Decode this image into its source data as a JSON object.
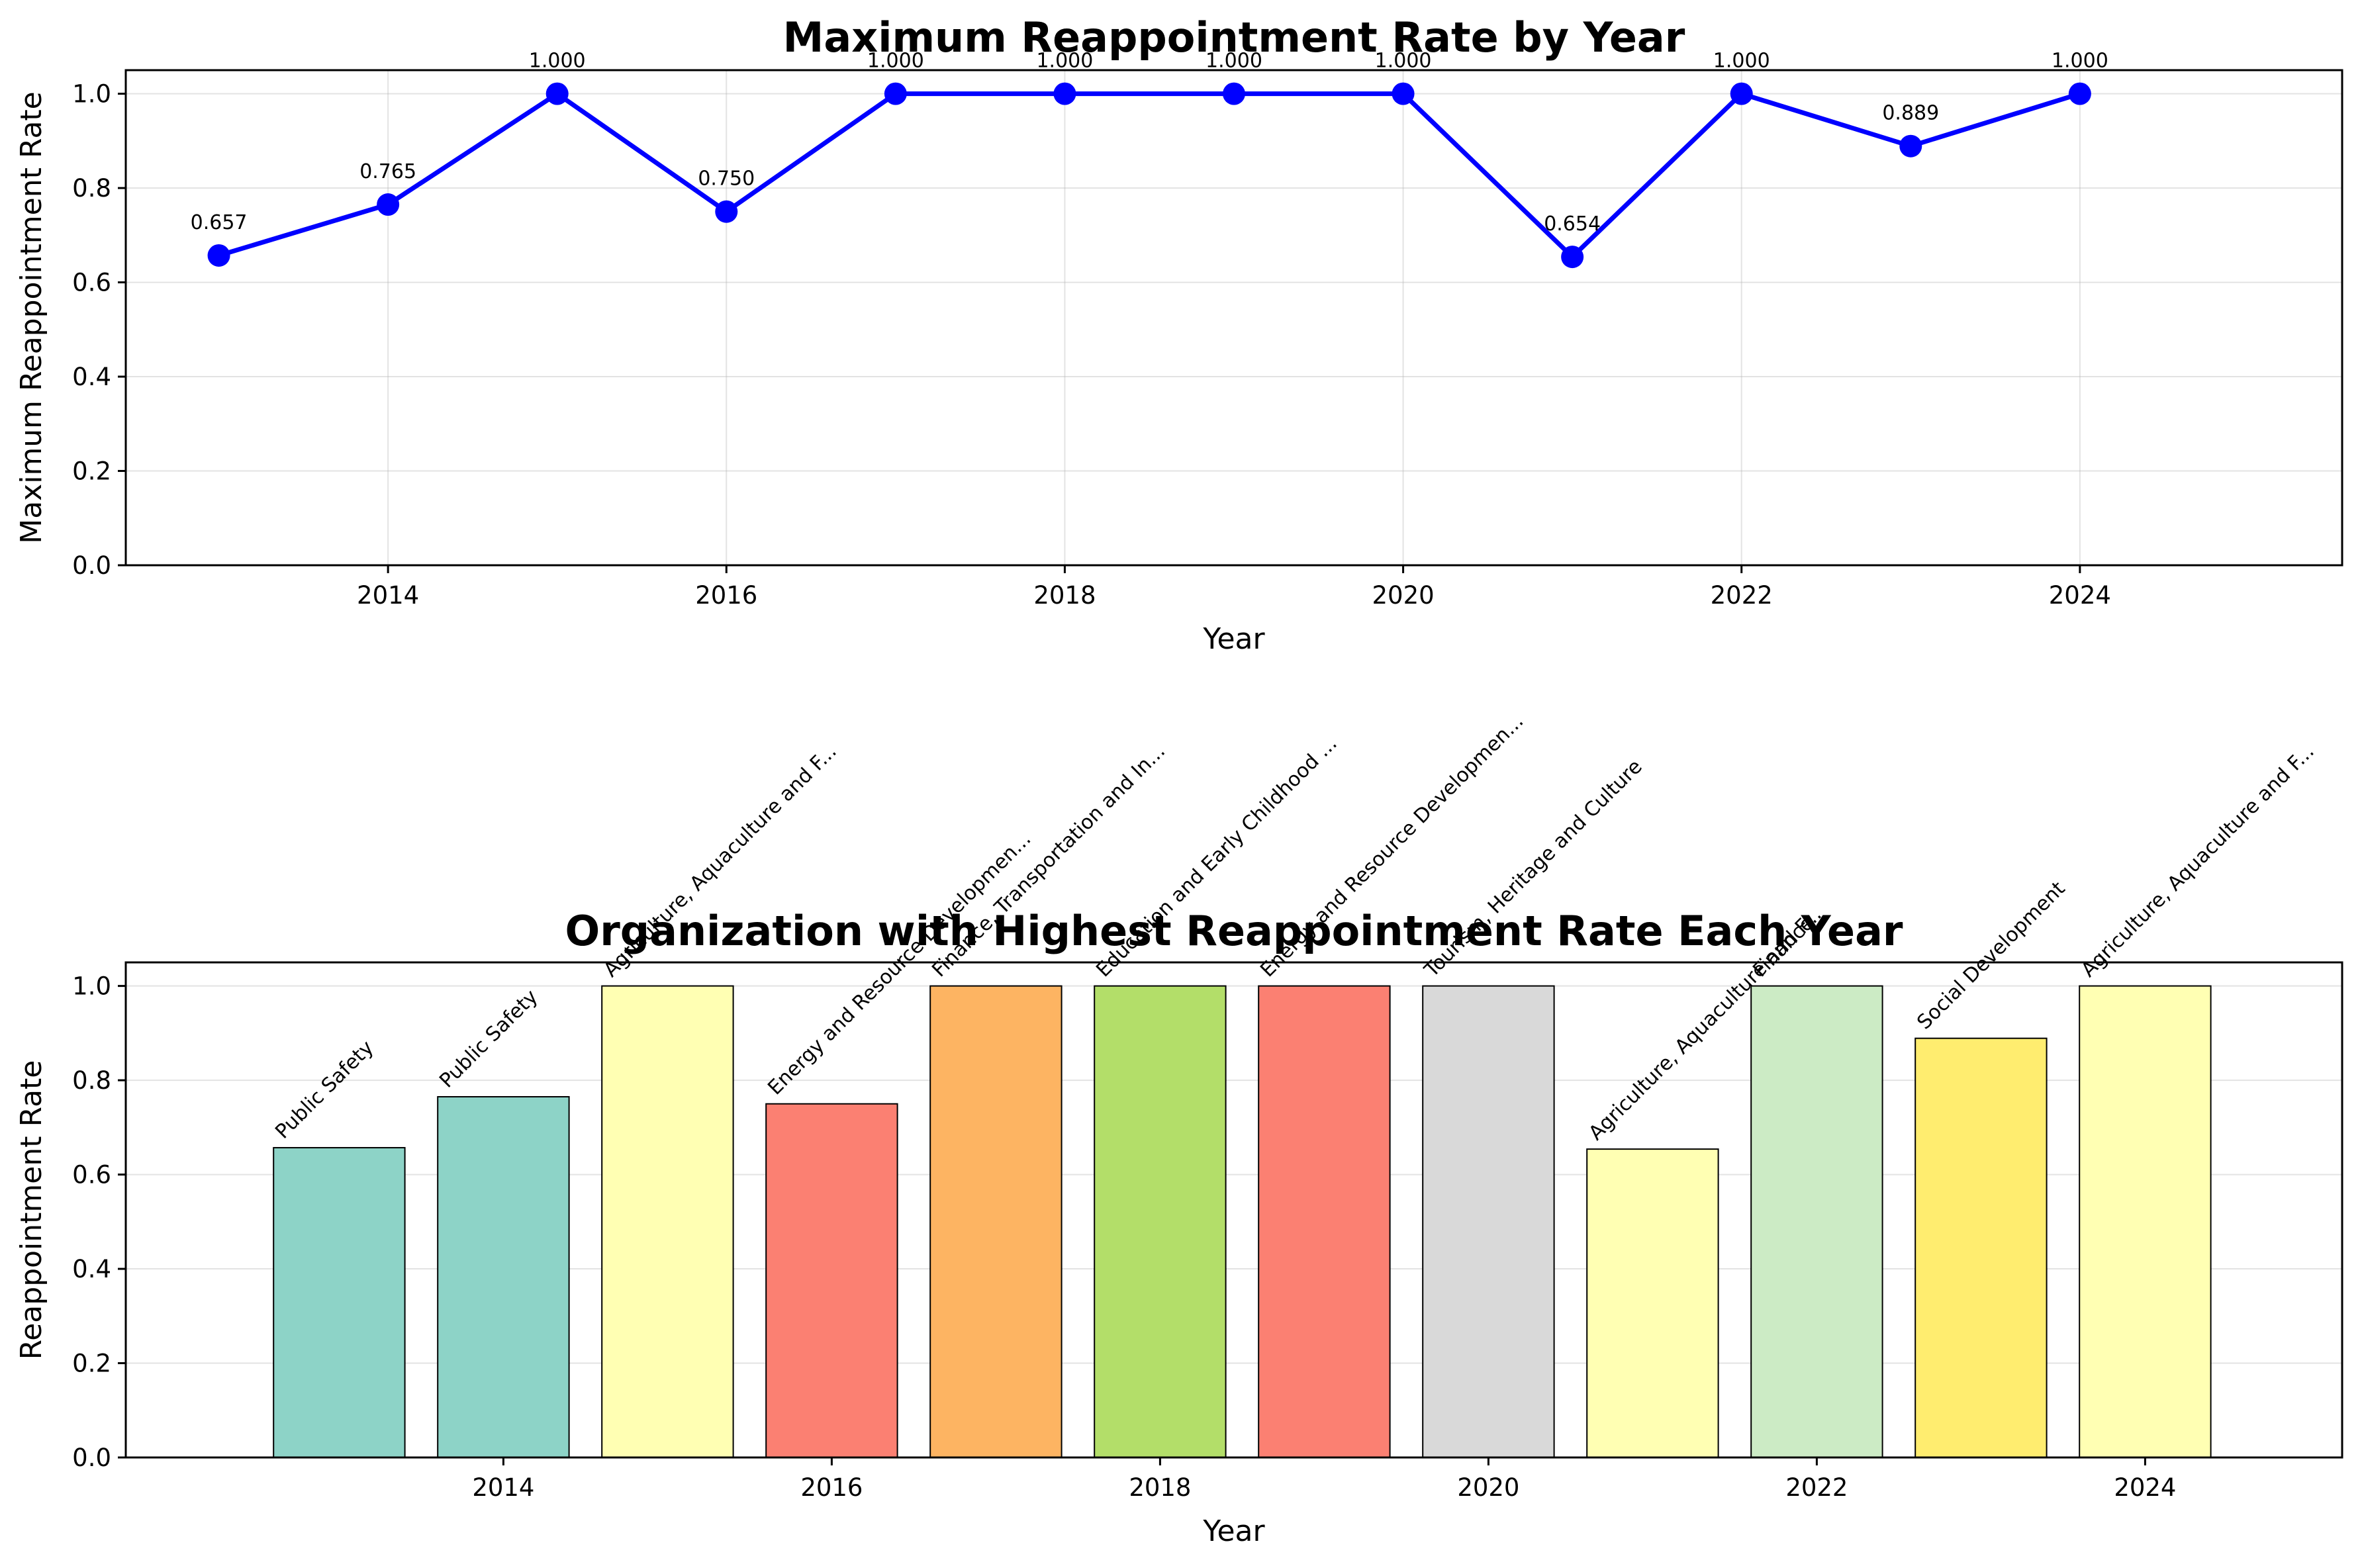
{
  "chart_data": [
    {
      "type": "line",
      "title": "Maximum Reappointment Rate by Year",
      "xlabel": "Year",
      "ylabel": "Maximum Reappointment Rate",
      "x": [
        2013,
        2014,
        2015,
        2016,
        2017,
        2018,
        2019,
        2020,
        2021,
        2022,
        2023,
        2024
      ],
      "values": [
        0.657,
        0.765,
        1.0,
        0.75,
        1.0,
        1.0,
        1.0,
        1.0,
        0.654,
        1.0,
        0.889,
        1.0
      ],
      "point_labels": [
        "0.657",
        "0.765",
        "1.000",
        "0.750",
        "1.000",
        "1.000",
        "1.000",
        "1.000",
        "0.654",
        "1.000",
        "0.889",
        "1.000"
      ],
      "xlim": [
        2012.45,
        2025.55
      ],
      "ylim": [
        0,
        1.05
      ],
      "xticks": [
        2014,
        2016,
        2018,
        2020,
        2022,
        2024
      ],
      "xtick_labels": [
        "2014",
        "2016",
        "2018",
        "2020",
        "2022",
        "2024"
      ],
      "yticks": [
        0,
        0.2,
        0.4,
        0.6,
        0.8,
        1.0
      ],
      "ytick_labels": [
        "0.0",
        "0.2",
        "0.4",
        "0.6",
        "0.8",
        "1.0"
      ],
      "line_color": "#0000ff",
      "grid": true
    },
    {
      "type": "bar",
      "title": "Organization with Highest Reappointment Rate Each Year",
      "xlabel": "Year",
      "ylabel": "Reappointment Rate",
      "x": [
        2013,
        2014,
        2015,
        2016,
        2017,
        2018,
        2019,
        2020,
        2021,
        2022,
        2023,
        2024
      ],
      "values": [
        0.657,
        0.765,
        1.0,
        0.75,
        1.0,
        1.0,
        1.0,
        1.0,
        0.654,
        1.0,
        0.889,
        1.0
      ],
      "organizations": [
        "Public Safety",
        "Public Safety",
        "Agriculture, Aquaculture and F...",
        "Energy and Resource Developmen...",
        "Finance, Transportation and In...",
        "Education and Early Childhood ...",
        "Energy and Resource Developmen...",
        "Tourism, Heritage and Culture",
        "Agriculture, Aquaculture and F...",
        "Finance",
        "Social Development",
        "Agriculture, Aquaculture and F..."
      ],
      "colors": [
        "#8dd3c7",
        "#8dd3c7",
        "#ffffb3",
        "#fb8072",
        "#fdb462",
        "#b3de69",
        "#fb8072",
        "#d9d9d9",
        "#ffffb3",
        "#ccebc5",
        "#ffed6f",
        "#ffffb3"
      ],
      "bar_width": 0.8,
      "xlim": [
        2011.7,
        2025.2
      ],
      "ylim": [
        0,
        1.05
      ],
      "xticks": [
        2014,
        2016,
        2018,
        2020,
        2022,
        2024
      ],
      "xtick_labels": [
        "2014",
        "2016",
        "2018",
        "2020",
        "2022",
        "2024"
      ],
      "yticks": [
        0,
        0.2,
        0.4,
        0.6,
        0.8,
        1.0
      ],
      "ytick_labels": [
        "0.0",
        "0.2",
        "0.4",
        "0.6",
        "0.8",
        "1.0"
      ],
      "grid": true
    }
  ]
}
